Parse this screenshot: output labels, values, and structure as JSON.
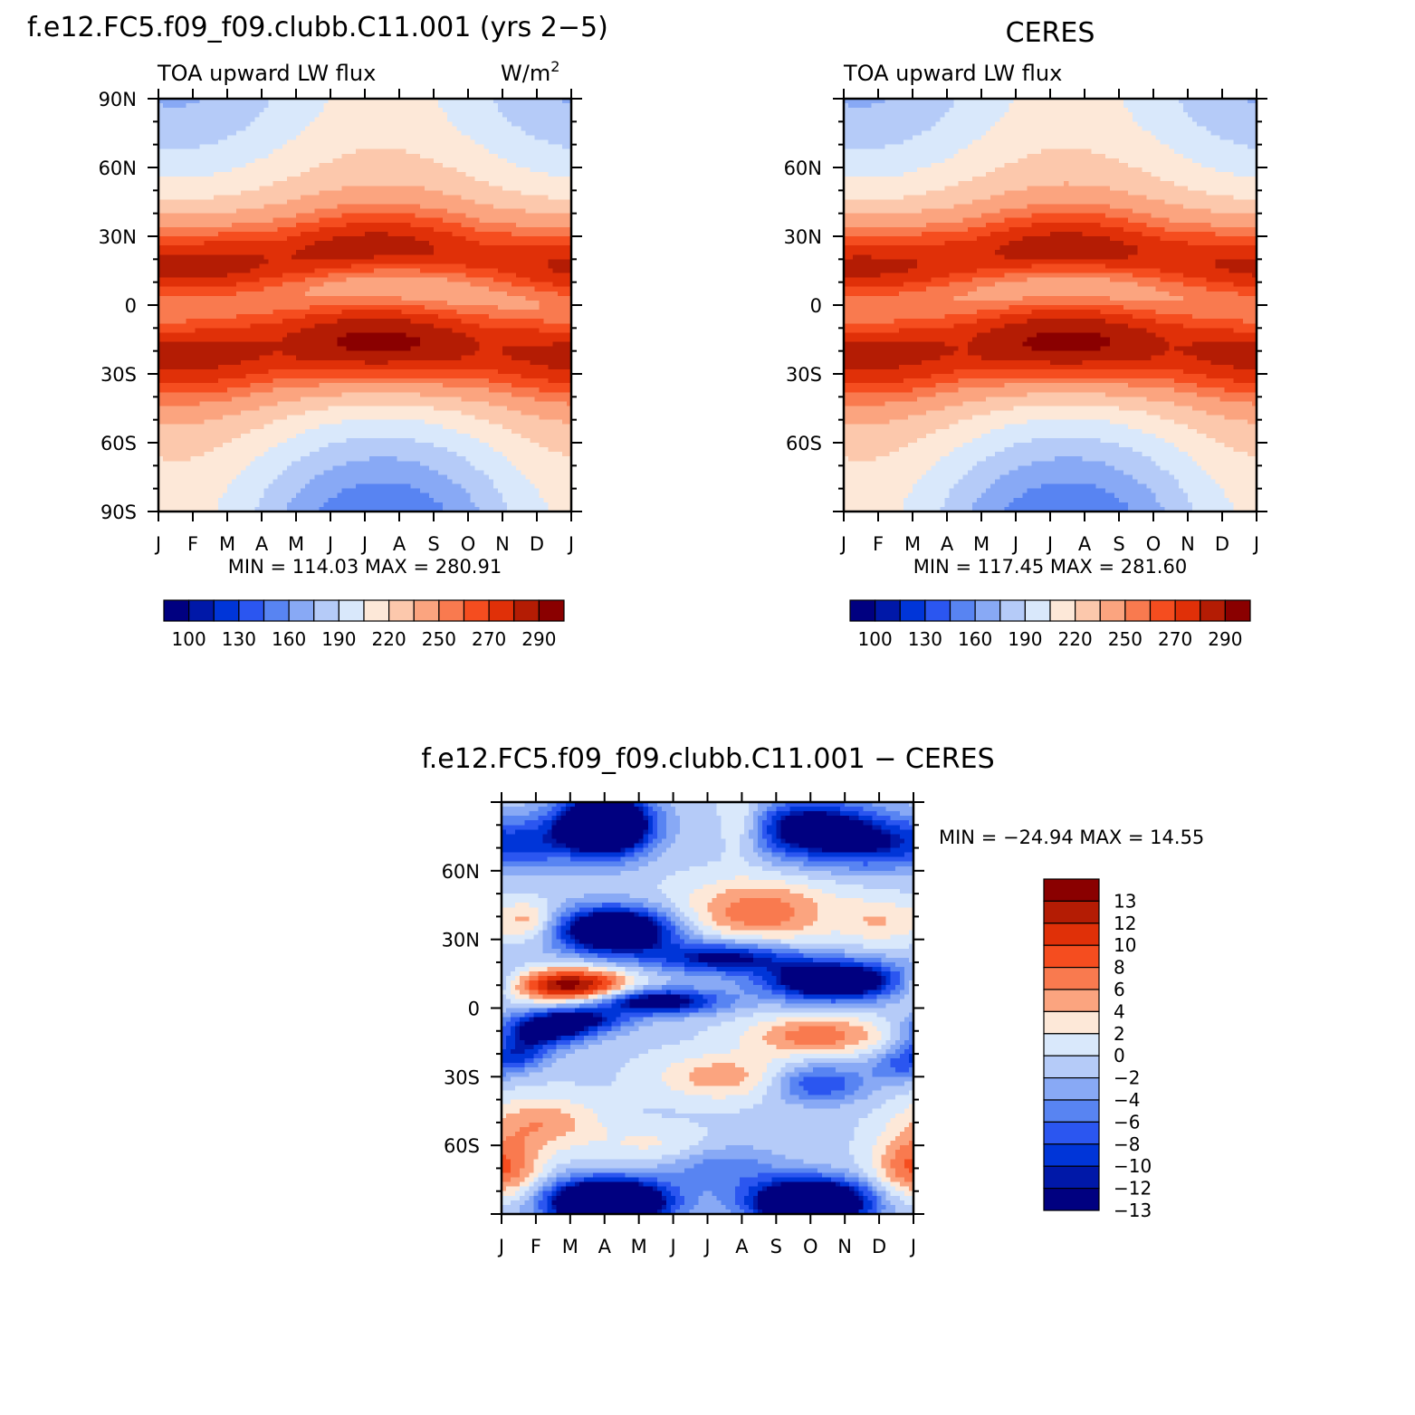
{
  "months": [
    "J",
    "F",
    "M",
    "A",
    "M",
    "J",
    "J",
    "A",
    "S",
    "O",
    "N",
    "D",
    "J"
  ],
  "top_left": {
    "title": "f.e12.FC5.f09_f09.clubb.C11.001 (yrs 2−5)",
    "left_label": "TOA upward LW flux",
    "right_label": "W/m",
    "right_label_sup": "2",
    "lat_labels": [
      "90N",
      "60N",
      "30N",
      "0",
      "30S",
      "60S",
      "90S"
    ],
    "stats": "MIN = 114.03 MAX = 280.91"
  },
  "top_right": {
    "title": "CERES",
    "left_label": "TOA upward LW flux",
    "lat_labels": [
      "60N",
      "30N",
      "0",
      "30S",
      "60S"
    ],
    "stats": "MIN = 117.45 MAX = 281.60"
  },
  "bottom": {
    "title": "f.e12.FC5.f09_f09.clubb.C11.001 − CERES",
    "lat_labels": [
      "60N",
      "30N",
      "0",
      "30S",
      "60S"
    ],
    "stats": "MIN = −24.94 MAX =   14.55"
  },
  "colorbar_top": {
    "labels": [
      "100",
      "130",
      "160",
      "190",
      "220",
      "250",
      "270",
      "290"
    ],
    "colors": [
      "#000080",
      "#0018a8",
      "#0035d8",
      "#2b56f0",
      "#5884f2",
      "#88a9f5",
      "#b5cbf8",
      "#d9e8fb",
      "#fde8d8",
      "#fcc8ac",
      "#fba47f",
      "#f97a4f",
      "#f54d1f",
      "#e03008",
      "#b41c04",
      "#8a0000"
    ]
  },
  "colorbar_bottom": {
    "labels": [
      "13",
      "12",
      "10",
      "8",
      "6",
      "4",
      "2",
      "0",
      "−2",
      "−4",
      "−6",
      "−8",
      "−10",
      "−12",
      "−13"
    ],
    "colors": [
      "#8a0000",
      "#b41c04",
      "#e03008",
      "#f54d1f",
      "#f97a4f",
      "#fba47f",
      "#fde8d8",
      "#d9e8fb",
      "#b5cbf8",
      "#88a9f5",
      "#5884f2",
      "#2b56f0",
      "#0035d8",
      "#0018a8",
      "#000080"
    ]
  },
  "chart_data": [
    {
      "type": "heatmap",
      "title": "f.e12.FC5.f09_f09.clubb.C11.001 (yrs 2−5)",
      "subtitle": "TOA upward LW flux",
      "units": "W/m2",
      "x": [
        "J",
        "F",
        "M",
        "A",
        "M",
        "J",
        "J",
        "A",
        "S",
        "O",
        "N",
        "D",
        "J"
      ],
      "y_range": [
        -90,
        90
      ],
      "min": 114.03,
      "max": 280.91,
      "contour_levels": [
        100,
        130,
        160,
        190,
        220,
        250,
        270,
        290
      ]
    },
    {
      "type": "heatmap",
      "title": "CERES",
      "subtitle": "TOA upward LW flux",
      "x": [
        "J",
        "F",
        "M",
        "A",
        "M",
        "J",
        "J",
        "A",
        "S",
        "O",
        "N",
        "D",
        "J"
      ],
      "y_range": [
        -90,
        90
      ],
      "min": 117.45,
      "max": 281.6,
      "contour_levels": [
        100,
        130,
        160,
        190,
        220,
        250,
        270,
        290
      ]
    },
    {
      "type": "heatmap",
      "title": "f.e12.FC5.f09_f09.clubb.C11.001 − CERES",
      "x": [
        "J",
        "F",
        "M",
        "A",
        "M",
        "J",
        "J",
        "A",
        "S",
        "O",
        "N",
        "D",
        "J"
      ],
      "y_range": [
        -90,
        90
      ],
      "min": -24.94,
      "max": 14.55,
      "contour_levels": [
        -13,
        -12,
        -10,
        -8,
        -6,
        -4,
        -2,
        0,
        2,
        4,
        6,
        8,
        10,
        12,
        13
      ]
    }
  ]
}
